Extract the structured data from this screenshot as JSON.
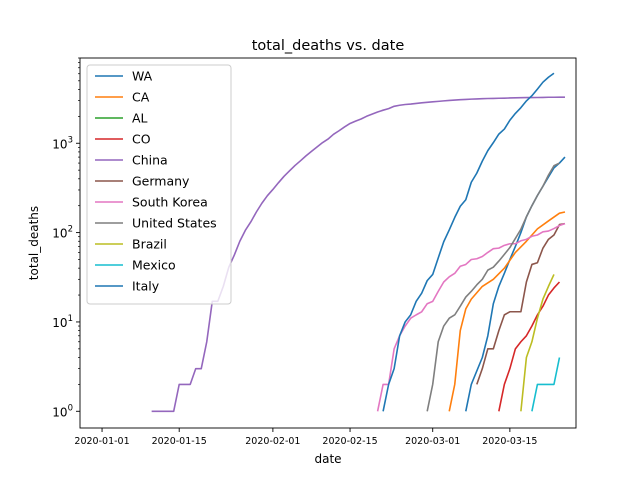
{
  "chart_data": {
    "type": "line",
    "title": "total_deaths vs. date",
    "xlabel": "date",
    "ylabel": "total_deaths",
    "yscale": "log",
    "xlim": [
      "2019-12-28",
      "2020-03-27"
    ],
    "ylim": [
      0.65,
      9000
    ],
    "x_ticks": [
      "2020-01-01",
      "2020-01-15",
      "2020-02-01",
      "2020-02-15",
      "2020-03-01",
      "2020-03-15"
    ],
    "y_ticks": [
      {
        "value": 1,
        "base": "10",
        "exp": "0"
      },
      {
        "value": 10,
        "base": "10",
        "exp": "1"
      },
      {
        "value": 100,
        "base": "10",
        "exp": "2"
      },
      {
        "value": 1000,
        "base": "10",
        "exp": "3"
      }
    ],
    "grid": false,
    "legend_position": "top-left",
    "series": [
      {
        "name": "WA",
        "color": "#1f77b4",
        "points": [
          [
            "2020-03-07",
            1
          ],
          [
            "2020-03-08",
            2
          ],
          [
            "2020-03-10",
            4
          ],
          [
            "2020-03-11",
            7
          ],
          [
            "2020-03-12",
            16
          ],
          [
            "2020-03-13",
            25
          ],
          [
            "2020-03-14",
            35
          ],
          [
            "2020-03-15",
            50
          ],
          [
            "2020-03-16",
            70
          ],
          [
            "2020-03-17",
            100
          ],
          [
            "2020-03-18",
            150
          ],
          [
            "2020-03-19",
            200
          ],
          [
            "2020-03-20",
            260
          ],
          [
            "2020-03-21",
            330
          ],
          [
            "2020-03-22",
            420
          ],
          [
            "2020-03-23",
            530
          ],
          [
            "2020-03-24",
            600
          ],
          [
            "2020-03-25",
            700
          ]
        ]
      },
      {
        "name": "CA",
        "color": "#ff7f0e",
        "points": [
          [
            "2020-03-04",
            1
          ],
          [
            "2020-03-05",
            2
          ],
          [
            "2020-03-06",
            8
          ],
          [
            "2020-03-07",
            14
          ],
          [
            "2020-03-08",
            18
          ],
          [
            "2020-03-10",
            25
          ],
          [
            "2020-03-12",
            30
          ],
          [
            "2020-03-14",
            40
          ],
          [
            "2020-03-16",
            60
          ],
          [
            "2020-03-18",
            80
          ],
          [
            "2020-03-20",
            110
          ],
          [
            "2020-03-22",
            135
          ],
          [
            "2020-03-24",
            165
          ],
          [
            "2020-03-25",
            170
          ]
        ]
      },
      {
        "name": "AL",
        "color": "#2ca02c",
        "points": []
      },
      {
        "name": "CO",
        "color": "#d62728",
        "points": [
          [
            "2020-03-13",
            1
          ],
          [
            "2020-03-14",
            2
          ],
          [
            "2020-03-15",
            3
          ],
          [
            "2020-03-16",
            5
          ],
          [
            "2020-03-17",
            6
          ],
          [
            "2020-03-18",
            7
          ],
          [
            "2020-03-19",
            9
          ],
          [
            "2020-03-20",
            12
          ],
          [
            "2020-03-21",
            15
          ],
          [
            "2020-03-22",
            20
          ],
          [
            "2020-03-23",
            24
          ],
          [
            "2020-03-24",
            28
          ]
        ]
      },
      {
        "name": "China",
        "color": "#9467bd",
        "points": [
          [
            "2020-01-10",
            1
          ],
          [
            "2020-01-11",
            1
          ],
          [
            "2020-01-12",
            1
          ],
          [
            "2020-01-13",
            1
          ],
          [
            "2020-01-14",
            1
          ],
          [
            "2020-01-15",
            2
          ],
          [
            "2020-01-16",
            2
          ],
          [
            "2020-01-17",
            2
          ],
          [
            "2020-01-18",
            3
          ],
          [
            "2020-01-19",
            3
          ],
          [
            "2020-01-20",
            6
          ],
          [
            "2020-01-21",
            17
          ],
          [
            "2020-01-22",
            17
          ],
          [
            "2020-01-23",
            25
          ],
          [
            "2020-01-24",
            41
          ],
          [
            "2020-01-25",
            56
          ],
          [
            "2020-01-26",
            80
          ],
          [
            "2020-01-27",
            106
          ],
          [
            "2020-01-28",
            132
          ],
          [
            "2020-01-29",
            170
          ],
          [
            "2020-01-30",
            213
          ],
          [
            "2020-01-31",
            259
          ],
          [
            "2020-02-01",
            304
          ],
          [
            "2020-02-02",
            361
          ],
          [
            "2020-02-03",
            425
          ],
          [
            "2020-02-04",
            490
          ],
          [
            "2020-02-05",
            563
          ],
          [
            "2020-02-06",
            636
          ],
          [
            "2020-02-07",
            722
          ],
          [
            "2020-02-08",
            811
          ],
          [
            "2020-02-09",
            908
          ],
          [
            "2020-02-10",
            1016
          ],
          [
            "2020-02-11",
            1113
          ],
          [
            "2020-02-12",
            1259
          ],
          [
            "2020-02-13",
            1380
          ],
          [
            "2020-02-14",
            1523
          ],
          [
            "2020-02-15",
            1665
          ],
          [
            "2020-02-16",
            1770
          ],
          [
            "2020-02-17",
            1868
          ],
          [
            "2020-02-18",
            2004
          ],
          [
            "2020-02-19",
            2118
          ],
          [
            "2020-02-20",
            2236
          ],
          [
            "2020-02-21",
            2345
          ],
          [
            "2020-02-22",
            2442
          ],
          [
            "2020-02-23",
            2592
          ],
          [
            "2020-02-24",
            2663
          ],
          [
            "2020-02-25",
            2715
          ],
          [
            "2020-02-26",
            2744
          ],
          [
            "2020-02-27",
            2788
          ],
          [
            "2020-02-28",
            2835
          ],
          [
            "2020-02-29",
            2870
          ],
          [
            "2020-03-01",
            2912
          ],
          [
            "2020-03-02",
            2943
          ],
          [
            "2020-03-03",
            2981
          ],
          [
            "2020-03-04",
            3012
          ],
          [
            "2020-03-05",
            3042
          ],
          [
            "2020-03-06",
            3070
          ],
          [
            "2020-03-07",
            3097
          ],
          [
            "2020-03-08",
            3119
          ],
          [
            "2020-03-09",
            3136
          ],
          [
            "2020-03-10",
            3158
          ],
          [
            "2020-03-11",
            3169
          ],
          [
            "2020-03-12",
            3176
          ],
          [
            "2020-03-13",
            3189
          ],
          [
            "2020-03-14",
            3199
          ],
          [
            "2020-03-15",
            3213
          ],
          [
            "2020-03-16",
            3226
          ],
          [
            "2020-03-17",
            3237
          ],
          [
            "2020-03-18",
            3245
          ],
          [
            "2020-03-19",
            3249
          ],
          [
            "2020-03-20",
            3253
          ],
          [
            "2020-03-21",
            3259
          ],
          [
            "2020-03-22",
            3274
          ],
          [
            "2020-03-23",
            3274
          ],
          [
            "2020-03-24",
            3281
          ],
          [
            "2020-03-25",
            3281
          ]
        ]
      },
      {
        "name": "Germany",
        "color": "#8c564b",
        "points": [
          [
            "2020-03-09",
            2
          ],
          [
            "2020-03-10",
            3
          ],
          [
            "2020-03-11",
            5
          ],
          [
            "2020-03-12",
            5
          ],
          [
            "2020-03-13",
            8
          ],
          [
            "2020-03-14",
            12
          ],
          [
            "2020-03-15",
            13
          ],
          [
            "2020-03-16",
            13
          ],
          [
            "2020-03-17",
            13
          ],
          [
            "2020-03-18",
            28
          ],
          [
            "2020-03-19",
            44
          ],
          [
            "2020-03-20",
            46
          ],
          [
            "2020-03-21",
            67
          ],
          [
            "2020-03-22",
            84
          ],
          [
            "2020-03-23",
            94
          ],
          [
            "2020-03-24",
            123
          ],
          [
            "2020-03-25",
            126
          ]
        ]
      },
      {
        "name": "South Korea",
        "color": "#e377c2",
        "points": [
          [
            "2020-02-20",
            1
          ],
          [
            "2020-02-21",
            2
          ],
          [
            "2020-02-22",
            2
          ],
          [
            "2020-02-23",
            5
          ],
          [
            "2020-02-24",
            7
          ],
          [
            "2020-02-25",
            9
          ],
          [
            "2020-02-26",
            11
          ],
          [
            "2020-02-27",
            12
          ],
          [
            "2020-02-28",
            13
          ],
          [
            "2020-02-29",
            16
          ],
          [
            "2020-03-01",
            17
          ],
          [
            "2020-03-02",
            22
          ],
          [
            "2020-03-03",
            28
          ],
          [
            "2020-03-04",
            32
          ],
          [
            "2020-03-05",
            35
          ],
          [
            "2020-03-06",
            42
          ],
          [
            "2020-03-07",
            44
          ],
          [
            "2020-03-08",
            50
          ],
          [
            "2020-03-09",
            51
          ],
          [
            "2020-03-10",
            54
          ],
          [
            "2020-03-11",
            60
          ],
          [
            "2020-03-12",
            66
          ],
          [
            "2020-03-13",
            67
          ],
          [
            "2020-03-14",
            72
          ],
          [
            "2020-03-15",
            75
          ],
          [
            "2020-03-16",
            75
          ],
          [
            "2020-03-17",
            81
          ],
          [
            "2020-03-18",
            84
          ],
          [
            "2020-03-19",
            91
          ],
          [
            "2020-03-20",
            94
          ],
          [
            "2020-03-21",
            102
          ],
          [
            "2020-03-22",
            104
          ],
          [
            "2020-03-23",
            111
          ],
          [
            "2020-03-24",
            120
          ],
          [
            "2020-03-25",
            126
          ]
        ]
      },
      {
        "name": "United States",
        "color": "#7f7f7f",
        "points": [
          [
            "2020-02-29",
            1
          ],
          [
            "2020-03-01",
            2
          ],
          [
            "2020-03-02",
            6
          ],
          [
            "2020-03-03",
            9
          ],
          [
            "2020-03-04",
            11
          ],
          [
            "2020-03-05",
            12
          ],
          [
            "2020-03-06",
            15
          ],
          [
            "2020-03-07",
            19
          ],
          [
            "2020-03-08",
            22
          ],
          [
            "2020-03-09",
            26
          ],
          [
            "2020-03-10",
            30
          ],
          [
            "2020-03-11",
            38
          ],
          [
            "2020-03-12",
            41
          ],
          [
            "2020-03-13",
            48
          ],
          [
            "2020-03-14",
            57
          ],
          [
            "2020-03-15",
            68
          ],
          [
            "2020-03-16",
            86
          ],
          [
            "2020-03-17",
            109
          ],
          [
            "2020-03-18",
            150
          ],
          [
            "2020-03-19",
            200
          ],
          [
            "2020-03-20",
            260
          ],
          [
            "2020-03-21",
            330
          ],
          [
            "2020-03-22",
            440
          ],
          [
            "2020-03-23",
            560
          ],
          [
            "2020-03-24",
            600
          ]
        ]
      },
      {
        "name": "Brazil",
        "color": "#bcbd22",
        "points": [
          [
            "2020-03-17",
            1
          ],
          [
            "2020-03-18",
            4
          ],
          [
            "2020-03-19",
            6
          ],
          [
            "2020-03-20",
            11
          ],
          [
            "2020-03-21",
            18
          ],
          [
            "2020-03-22",
            25
          ],
          [
            "2020-03-23",
            34
          ]
        ]
      },
      {
        "name": "Mexico",
        "color": "#17becf",
        "points": [
          [
            "2020-03-19",
            1
          ],
          [
            "2020-03-20",
            2
          ],
          [
            "2020-03-21",
            2
          ],
          [
            "2020-03-22",
            2
          ],
          [
            "2020-03-23",
            2
          ],
          [
            "2020-03-24",
            4
          ]
        ]
      },
      {
        "name": "Italy",
        "color": "#1f77b4",
        "points": [
          [
            "2020-02-21",
            1
          ],
          [
            "2020-02-22",
            2
          ],
          [
            "2020-02-23",
            3
          ],
          [
            "2020-02-24",
            7
          ],
          [
            "2020-02-25",
            10
          ],
          [
            "2020-02-26",
            12
          ],
          [
            "2020-02-27",
            17
          ],
          [
            "2020-02-28",
            21
          ],
          [
            "2020-02-29",
            29
          ],
          [
            "2020-03-01",
            34
          ],
          [
            "2020-03-02",
            52
          ],
          [
            "2020-03-03",
            79
          ],
          [
            "2020-03-04",
            107
          ],
          [
            "2020-03-05",
            148
          ],
          [
            "2020-03-06",
            197
          ],
          [
            "2020-03-07",
            233
          ],
          [
            "2020-03-08",
            366
          ],
          [
            "2020-03-09",
            463
          ],
          [
            "2020-03-10",
            631
          ],
          [
            "2020-03-11",
            827
          ],
          [
            "2020-03-12",
            1016
          ],
          [
            "2020-03-13",
            1266
          ],
          [
            "2020-03-14",
            1441
          ],
          [
            "2020-03-15",
            1809
          ],
          [
            "2020-03-16",
            2158
          ],
          [
            "2020-03-17",
            2503
          ],
          [
            "2020-03-18",
            2978
          ],
          [
            "2020-03-19",
            3405
          ],
          [
            "2020-03-20",
            4032
          ],
          [
            "2020-03-21",
            4825
          ],
          [
            "2020-03-22",
            5476
          ],
          [
            "2020-03-23",
            6077
          ]
        ]
      }
    ]
  }
}
